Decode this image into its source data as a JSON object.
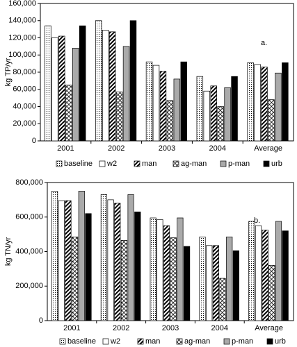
{
  "chart_data": [
    {
      "type": "bar",
      "ylabel": "kg TP/yr",
      "annotation": "a.",
      "categories": [
        "2001",
        "2002",
        "2003",
        "2004",
        "Average"
      ],
      "series": [
        {
          "name": "baseline",
          "color": "#ffffff",
          "pattern": "dots",
          "values": [
            134000,
            140000,
            92000,
            75000,
            91000
          ]
        },
        {
          "name": "w2",
          "color": "#ffffff",
          "pattern": "none",
          "values": [
            120000,
            129000,
            88000,
            58000,
            89000
          ]
        },
        {
          "name": "man",
          "color": "#ffffff",
          "pattern": "diag",
          "values": [
            122000,
            127000,
            81000,
            64000,
            86000
          ]
        },
        {
          "name": "ag-man",
          "color": "#ffffff",
          "pattern": "cross",
          "values": [
            65000,
            57000,
            47000,
            40000,
            48000
          ]
        },
        {
          "name": "p-man",
          "color": "#aaaaaa",
          "pattern": "none",
          "values": [
            108000,
            110000,
            72000,
            62000,
            79000
          ]
        },
        {
          "name": "urb",
          "color": "#000000",
          "pattern": "none",
          "values": [
            134000,
            140000,
            92000,
            75000,
            91000
          ]
        }
      ],
      "ylim": [
        0,
        160000
      ],
      "yticks": [
        0,
        {
          "value": 20000,
          "label": "20,000"
        },
        {
          "value": 40000,
          "label": "40,000"
        },
        {
          "value": 60000,
          "label": "60,000"
        },
        {
          "value": 80000,
          "label": "80,000"
        },
        {
          "value": 100000,
          "label": "100,000"
        },
        {
          "value": 120000,
          "label": "120,000"
        },
        {
          "value": 140000,
          "label": "140,000"
        },
        {
          "value": 160000,
          "label": "160,000"
        }
      ],
      "legend": "bottom"
    },
    {
      "type": "bar",
      "ylabel": "kg TN/yr",
      "annotation": "b.",
      "categories": [
        "2001",
        "2002",
        "2003",
        "2004",
        "Average"
      ],
      "series": [
        {
          "name": "baseline",
          "color": "#ffffff",
          "pattern": "dots",
          "values": [
            750000,
            730000,
            595000,
            485000,
            575000
          ]
        },
        {
          "name": "w2",
          "color": "#ffffff",
          "pattern": "none",
          "values": [
            695000,
            700000,
            585000,
            435000,
            550000
          ]
        },
        {
          "name": "man",
          "color": "#ffffff",
          "pattern": "diag",
          "values": [
            695000,
            680000,
            550000,
            435000,
            525000
          ]
        },
        {
          "name": "ag-man",
          "color": "#ffffff",
          "pattern": "cross",
          "values": [
            485000,
            465000,
            480000,
            245000,
            320000
          ]
        },
        {
          "name": "p-man",
          "color": "#aaaaaa",
          "pattern": "none",
          "values": [
            750000,
            730000,
            595000,
            485000,
            575000
          ]
        },
        {
          "name": "urb",
          "color": "#000000",
          "pattern": "none",
          "values": [
            620000,
            630000,
            430000,
            405000,
            520000
          ]
        }
      ],
      "ylim": [
        0,
        800000
      ],
      "yticks": [
        0,
        {
          "value": 200000,
          "label": "200,000"
        },
        {
          "value": 400000,
          "label": "400,000"
        },
        {
          "value": 600000,
          "label": "600,000"
        },
        {
          "value": 800000,
          "label": "800,000"
        }
      ],
      "legend": "bottom"
    }
  ]
}
